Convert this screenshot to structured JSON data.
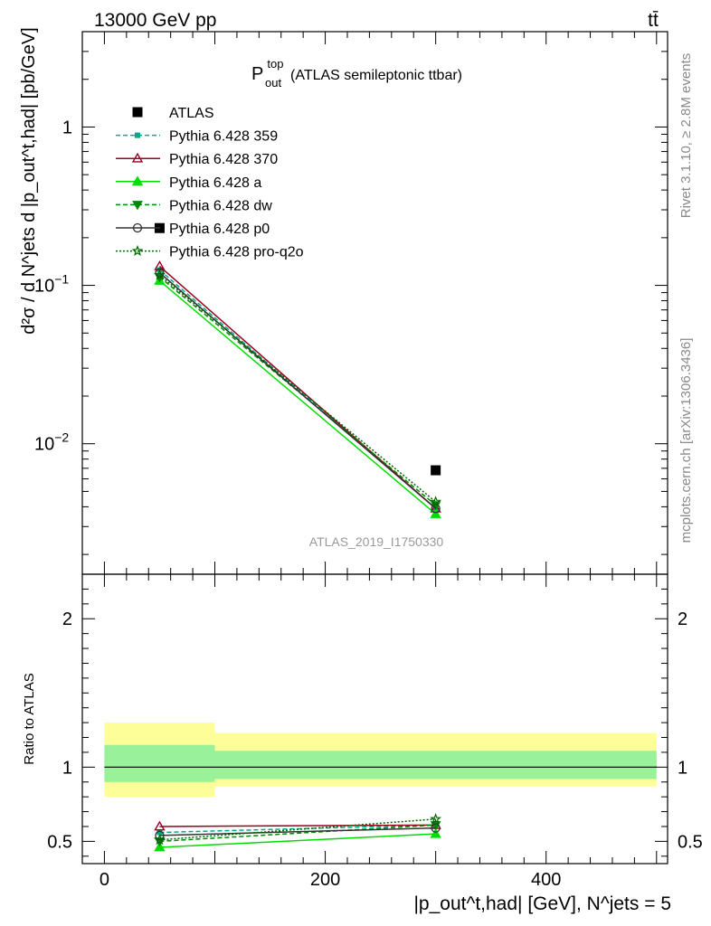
{
  "header": {
    "beam": "13000 GeV pp",
    "process": "tt̄"
  },
  "side_labels": {
    "rivet": "Rivet 3.1.10, ≥ 2.8M events",
    "source": "mcplots.cern.ch [arXiv:1306.3436]"
  },
  "plot_title": {
    "base": "P",
    "sup": "top",
    "sub": "out",
    "rest": "(ATLAS semileptonic ttbar)"
  },
  "analysis_id": "ATLAS_2019_I1750330",
  "main_ylabel": "d²σ / d N^jets d |p_out^t,had| [pb/GeV]",
  "ratio_ylabel": "Ratio to ATLAS",
  "xlabel": "|p_out^t,had| [GeV], N^jets = 5",
  "chart_data": [
    {
      "type": "line",
      "panel": "main",
      "x": [
        50,
        300
      ],
      "xlim": [
        -20,
        510
      ],
      "ylim": [
        0.0015,
        4.0
      ],
      "yscale": "log",
      "y_ticks": [
        {
          "value": 1,
          "label": "1"
        },
        {
          "value": 0.1,
          "label": "10",
          "exp": "−1"
        },
        {
          "value": 0.01,
          "label": "10",
          "exp": "−2"
        }
      ],
      "legend_position": "top-left",
      "series": [
        {
          "name": "ATLAS",
          "values": [
            0.23,
            0.0068
          ],
          "color": "#000000",
          "marker": "square",
          "dash": "none",
          "data": true
        },
        {
          "name": "Pythia 6.428 359",
          "values": [
            0.125,
            0.0039
          ],
          "color": "#00aa88",
          "marker": "small-square",
          "dash": "5,3"
        },
        {
          "name": "Pythia 6.428 370",
          "values": [
            0.132,
            0.0039
          ],
          "color": "#9b0020",
          "marker": "open-triangle",
          "dash": "none"
        },
        {
          "name": "Pythia 6.428 a",
          "values": [
            0.107,
            0.0036
          ],
          "color": "#00dd00",
          "marker": "filled-triangle",
          "dash": "none"
        },
        {
          "name": "Pythia 6.428 dw",
          "values": [
            0.113,
            0.0041
          ],
          "color": "#008800",
          "marker": "filled-triangle-down",
          "dash": "5,3"
        },
        {
          "name": "Pythia 6.428 p0",
          "values": [
            0.12,
            0.0039
          ],
          "color": "#333333",
          "marker": "open-circle",
          "dash": "none"
        },
        {
          "name": "Pythia 6.428 pro-q2o",
          "values": [
            0.116,
            0.0043
          ],
          "color": "#006600",
          "marker": "open-star",
          "dash": "2,2"
        }
      ]
    },
    {
      "type": "line",
      "panel": "ratio",
      "x": [
        50,
        300
      ],
      "xlim": [
        -20,
        510
      ],
      "ylim": [
        0.35,
        2.3
      ],
      "x_ticks": [
        0,
        200,
        400
      ],
      "y_ticks": [
        0.5,
        1,
        2
      ],
      "bands": [
        {
          "x_from": 0,
          "x_to": 100,
          "inner": [
            0.9,
            1.15
          ],
          "outer": [
            0.8,
            1.3
          ]
        },
        {
          "x_from": 100,
          "x_to": 500,
          "inner": [
            0.92,
            1.11
          ],
          "outer": [
            0.87,
            1.23
          ]
        }
      ],
      "band_colors": {
        "inner": "#99f299",
        "outer": "#fefe99"
      },
      "series": [
        {
          "name": "Pythia 6.428 359",
          "values": [
            0.56,
            0.61
          ]
        },
        {
          "name": "Pythia 6.428 370",
          "values": [
            0.6,
            0.61
          ]
        },
        {
          "name": "Pythia 6.428 a",
          "values": [
            0.46,
            0.55
          ]
        },
        {
          "name": "Pythia 6.428 dw",
          "values": [
            0.5,
            0.61
          ]
        },
        {
          "name": "Pythia 6.428 p0",
          "values": [
            0.54,
            0.59
          ]
        },
        {
          "name": "Pythia 6.428 pro-q2o",
          "values": [
            0.51,
            0.65
          ]
        }
      ]
    }
  ]
}
